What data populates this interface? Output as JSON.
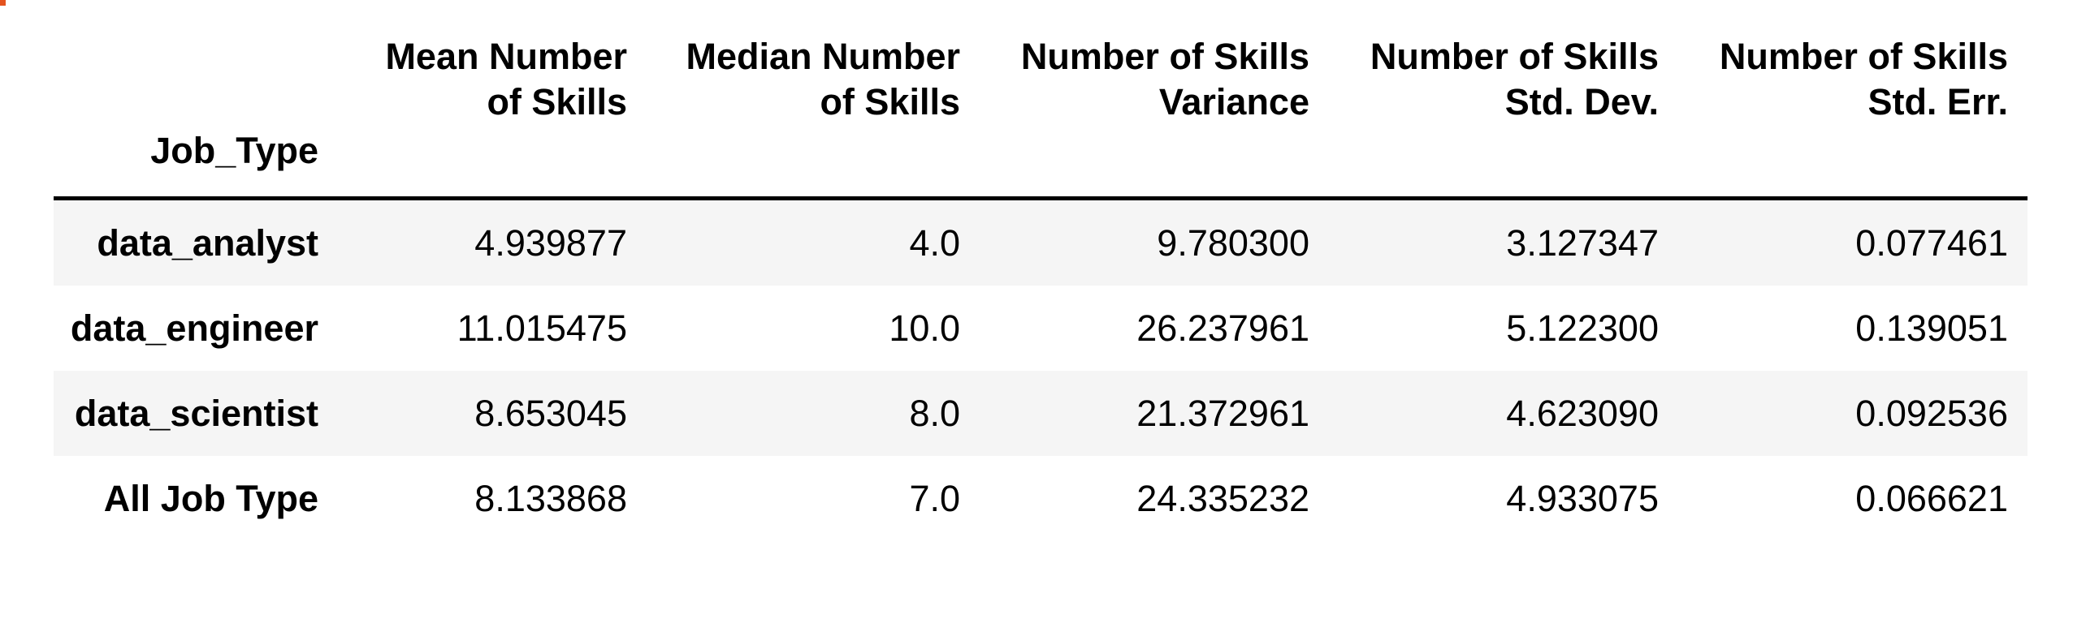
{
  "table": {
    "index_name": "Job_Type",
    "columns": [
      {
        "line1": "Mean Number",
        "line2": "of Skills"
      },
      {
        "line1": "Median Number",
        "line2": "of Skills"
      },
      {
        "line1": "Number of Skills",
        "line2": "Variance"
      },
      {
        "line1": "Number of Skills",
        "line2": "Std. Dev."
      },
      {
        "line1": "Number of Skills",
        "line2": "Std. Err."
      }
    ],
    "rows": [
      {
        "label": "data_analyst",
        "values": [
          "4.939877",
          "4.0",
          "9.780300",
          "3.127347",
          "0.077461"
        ]
      },
      {
        "label": "data_engineer",
        "values": [
          "11.015475",
          "10.0",
          "26.237961",
          "5.122300",
          "0.139051"
        ]
      },
      {
        "label": "data_scientist",
        "values": [
          "8.653045",
          "8.0",
          "21.372961",
          "4.623090",
          "0.092536"
        ]
      },
      {
        "label": "All Job Type",
        "values": [
          "8.133868",
          "7.0",
          "24.335232",
          "4.933075",
          "0.066621"
        ]
      }
    ]
  },
  "colors": {
    "stripe": "#f5f5f5",
    "rule": "#000000",
    "corner_mark": "#e4531f"
  }
}
